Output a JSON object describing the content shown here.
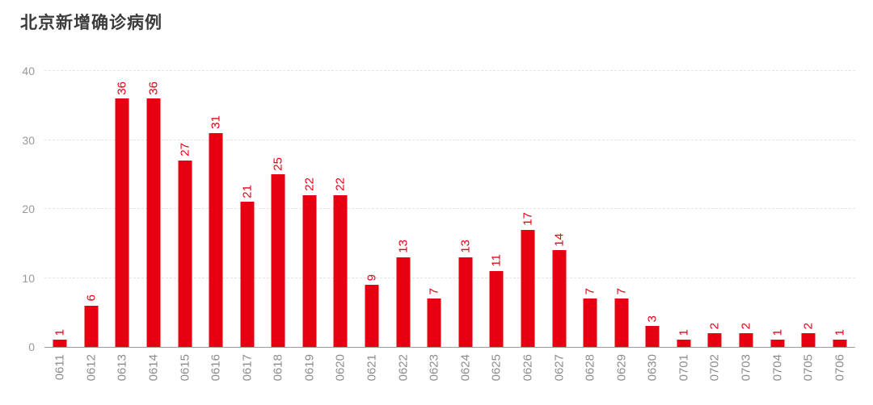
{
  "header": {
    "title": "北京新增确诊病例"
  },
  "colors": {
    "bar": "#e60012",
    "value_label": "#e60012",
    "date_label": "#8c8c8c",
    "ytick_label": "#999999",
    "title": "#3c3c3c",
    "gridline": "#e4e4e4",
    "baseline": "#9b9b9b",
    "background": "#ffffff"
  },
  "chart_data": {
    "type": "bar",
    "title": "北京新增确诊病例",
    "categories": [
      "0611",
      "0612",
      "0613",
      "0614",
      "0615",
      "0616",
      "0617",
      "0618",
      "0619",
      "0620",
      "0621",
      "0622",
      "0623",
      "0624",
      "0625",
      "0626",
      "0627",
      "0628",
      "0629",
      "0630",
      "0701",
      "0702",
      "0703",
      "0704",
      "0705",
      "0706"
    ],
    "values": [
      1,
      6,
      36,
      36,
      27,
      31,
      21,
      25,
      22,
      22,
      9,
      13,
      7,
      13,
      11,
      17,
      14,
      7,
      7,
      3,
      1,
      2,
      2,
      1,
      2,
      1
    ],
    "xlabel": "",
    "ylabel": "",
    "ylim": [
      0,
      40
    ],
    "yticks": [
      0,
      10,
      20,
      30,
      40
    ],
    "grid": true,
    "legend_position": "none",
    "bar_color": "#e60012",
    "label_rotation": -90,
    "value_labels_shown": true
  }
}
